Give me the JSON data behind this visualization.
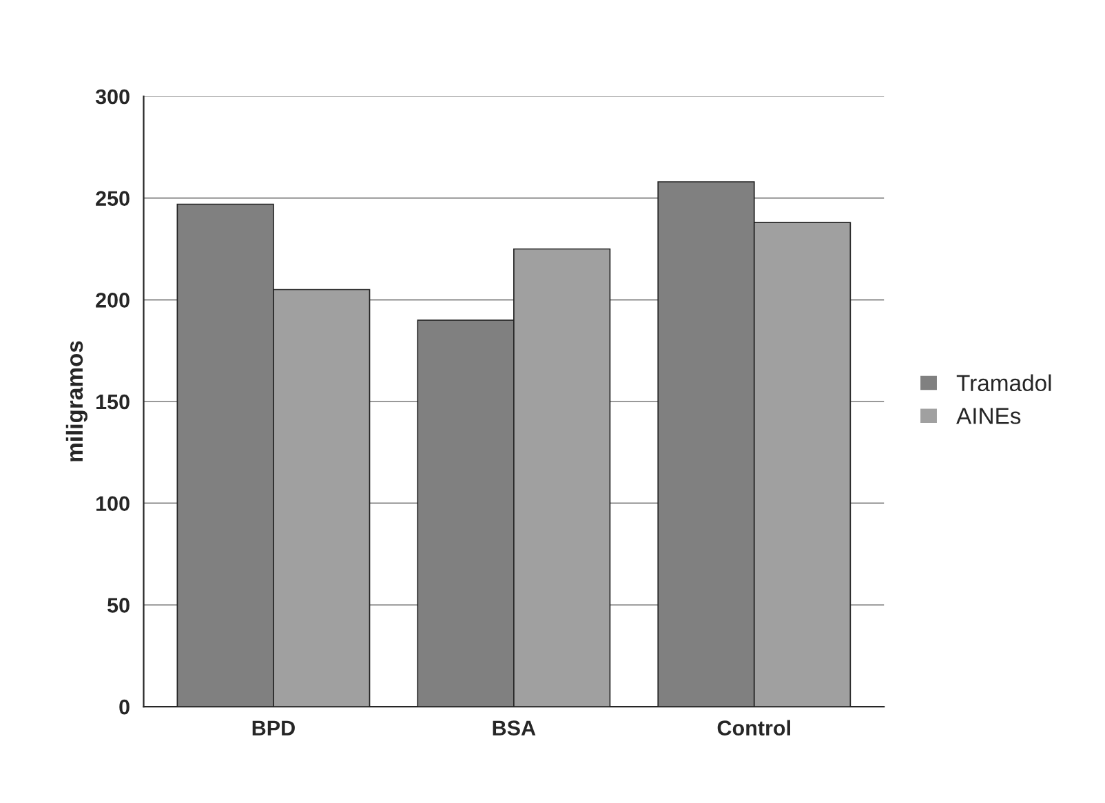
{
  "chart_data": {
    "type": "bar",
    "ylabel": "miligramos",
    "categories": [
      "BPD",
      "BSA",
      "Control"
    ],
    "series": [
      {
        "name": "Tramadol",
        "color": "#808080",
        "values": [
          247,
          190,
          258
        ]
      },
      {
        "name": "AINEs",
        "color": "#a0a0a0",
        "values": [
          205,
          225,
          238
        ]
      }
    ],
    "ylim": [
      0,
      300
    ],
    "yticks": [
      0,
      50,
      100,
      150,
      200,
      250,
      300
    ],
    "grid": "y",
    "legend": "right"
  }
}
